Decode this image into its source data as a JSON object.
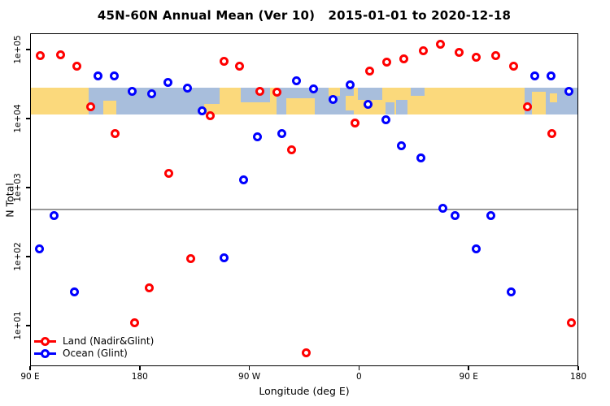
{
  "chart_data": {
    "type": "scatter",
    "title": "45N-60N Annual Mean (Ver 10)   2015-01-01 to 2020-12-18",
    "xlabel": "Longitude (deg E)",
    "ylabel": "N Total",
    "x_axis": {
      "min": 90,
      "max": 540,
      "ticks": [
        {
          "lon": 90,
          "label": "90 E"
        },
        {
          "lon": 180,
          "label": "180"
        },
        {
          "lon": 270,
          "label": "90 W"
        },
        {
          "lon": 360,
          "label": "0"
        },
        {
          "lon": 450,
          "label": "90 E"
        },
        {
          "lon": 540,
          "label": "180"
        }
      ]
    },
    "y_axis": {
      "scale": "log",
      "range": [
        2.6,
        172000
      ],
      "ticks": [
        {
          "value": 100000,
          "label": "1e+05"
        },
        {
          "value": 10000,
          "label": "1e+04"
        },
        {
          "value": 1000,
          "label": "1e+03"
        },
        {
          "value": 100,
          "label": "1e+02"
        },
        {
          "value": 10,
          "label": "1e+01"
        }
      ]
    },
    "reference_line": {
      "value": 480,
      "color": "#999999"
    },
    "map_band": {
      "comment": "coastline strip for 45N-60N drawn across the plot",
      "value_range": [
        11500,
        28000
      ],
      "land_color": "#fbd97c",
      "ocean_color": "#a8bedc",
      "ocean_segments": [
        [
          0.107,
          0.346,
          0,
          1
        ],
        [
          0.385,
          0.437,
          0,
          0.55
        ],
        [
          0.45,
          0.59,
          0,
          1
        ],
        [
          0.598,
          0.642,
          0,
          0.45
        ],
        [
          0.648,
          0.664,
          0.55,
          1
        ],
        [
          0.668,
          0.688,
          0.45,
          1
        ],
        [
          0.695,
          0.72,
          0,
          0.3
        ],
        [
          0.902,
          1.0,
          0,
          1
        ]
      ],
      "land_patches": [
        [
          0.133,
          0.158,
          0.5,
          1
        ],
        [
          0.318,
          0.346,
          0.62,
          1
        ],
        [
          0.468,
          0.52,
          0.4,
          1
        ],
        [
          0.545,
          0.565,
          0,
          0.3
        ],
        [
          0.575,
          0.594,
          0.3,
          0.85
        ],
        [
          0.915,
          0.94,
          0.15,
          1
        ],
        [
          0.948,
          0.962,
          0.2,
          0.55
        ]
      ]
    },
    "series": [
      {
        "name": "Land (Nadir&Glint)",
        "color": "#ff0000",
        "points": [
          [
            98.5,
            81000
          ],
          [
            115,
            85000
          ],
          [
            128.5,
            57000
          ],
          [
            139.5,
            15000
          ],
          [
            159.5,
            6100
          ],
          [
            175.5,
            11
          ],
          [
            188,
            35
          ],
          [
            204,
            1600
          ],
          [
            222,
            95
          ],
          [
            238,
            11000
          ],
          [
            249,
            68000
          ],
          [
            262,
            58000
          ],
          [
            278.5,
            25000
          ],
          [
            292.5,
            24000
          ],
          [
            304.5,
            3500
          ],
          [
            317,
            4.1
          ],
          [
            357,
            8700
          ],
          [
            368.5,
            49000
          ],
          [
            383,
            65000
          ],
          [
            397,
            74000
          ],
          [
            412.5,
            97000
          ],
          [
            427,
            120000
          ],
          [
            442.5,
            90000
          ],
          [
            456.5,
            78000
          ],
          [
            472,
            81000
          ],
          [
            487,
            57000
          ],
          [
            498.5,
            15000
          ],
          [
            518.5,
            6100
          ],
          [
            534,
            11
          ]
        ]
      },
      {
        "name": "Ocean (Glint)",
        "color": "#0000ff",
        "points": [
          [
            98,
            130
          ],
          [
            110,
            390
          ],
          [
            126.5,
            31
          ],
          [
            145.5,
            41000
          ],
          [
            159,
            41000
          ],
          [
            173.5,
            25000
          ],
          [
            189.5,
            23000
          ],
          [
            203.5,
            33000
          ],
          [
            219,
            28000
          ],
          [
            231,
            13000
          ],
          [
            249.5,
            97
          ],
          [
            265.5,
            1300
          ],
          [
            276.5,
            5500
          ],
          [
            296.5,
            6100
          ],
          [
            308.5,
            35000
          ],
          [
            322.5,
            27000
          ],
          [
            338.5,
            19000
          ],
          [
            352.5,
            31000
          ],
          [
            367.5,
            16000
          ],
          [
            382,
            9500
          ],
          [
            395,
            4100
          ],
          [
            410.5,
            2700
          ],
          [
            429,
            510
          ],
          [
            439,
            390
          ],
          [
            456.5,
            130
          ],
          [
            468.5,
            390
          ],
          [
            485,
            31
          ],
          [
            504,
            41000
          ],
          [
            517.5,
            41000
          ],
          [
            532,
            25000
          ]
        ]
      }
    ],
    "legend": {
      "position": "bottom-left"
    }
  }
}
